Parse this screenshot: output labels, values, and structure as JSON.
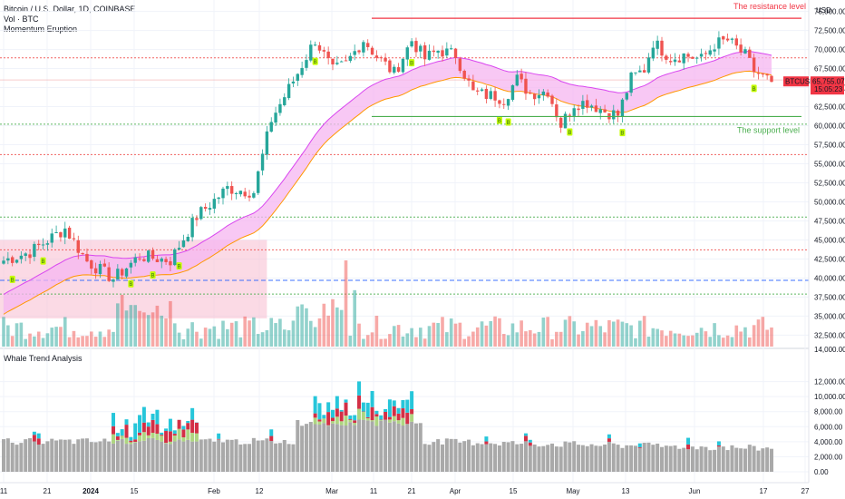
{
  "header": {
    "title": "Bitcoin / U.S. Dollar, 1D, COINBASE",
    "indicator_1": "Vol · BTC",
    "indicator_2": "Momentum Eruption",
    "pane2_title": "Whale Trend Analysis",
    "currency": "USD"
  },
  "price_tag": {
    "symbol": "BTCUSD",
    "price": "65,755.07",
    "countdown": "15:05:23",
    "color": "#f23645"
  },
  "annotations": {
    "resistance": {
      "label": "The resistance level",
      "value": 74100,
      "color": "#f23645"
    },
    "support": {
      "label": "The support level",
      "value": 61200,
      "color": "#4caf50"
    }
  },
  "colors": {
    "up": "#26a69a",
    "down": "#ef5350",
    "band_fill": "#f5b5f0",
    "band_line": "#d946ef",
    "band_lower": "#ff9800",
    "whale_gray": "#a9a9a9",
    "whale_green": "#aed581",
    "whale_red": "#d32f45",
    "whale_cyan": "#26c6da",
    "signal_label": "#c6ff00"
  },
  "chart_data": {
    "type": "candlestick",
    "ylim": [
      31000,
      76500
    ],
    "y_ticks": [
      "75,000.00",
      "72,500.00",
      "70,000.00",
      "67,500.00",
      "65,000.00",
      "62,500.00",
      "60,000.00",
      "57,500.00",
      "55,000.00",
      "52,500.00",
      "50,000.00",
      "47,500.00",
      "45,000.00",
      "42,500.00",
      "40,000.00",
      "37,500.00",
      "35,000.00",
      "32,500.00"
    ],
    "volume_axis_label": "14,000.00",
    "x_ticks": [
      "11",
      "21",
      "2024",
      "15",
      "Feb",
      "12",
      "Mar",
      "11",
      "21",
      "Apr",
      "15",
      "May",
      "13",
      "Jun",
      "17",
      "27"
    ],
    "x_tick_bold": [
      "2024"
    ],
    "close_anchors": [
      [
        0,
        42300
      ],
      [
        6,
        43400
      ],
      [
        14,
        46500
      ],
      [
        19,
        42200
      ],
      [
        25,
        39900
      ],
      [
        31,
        42900
      ],
      [
        38,
        42300
      ],
      [
        44,
        48100
      ],
      [
        51,
        51800
      ],
      [
        57,
        51300
      ],
      [
        61,
        60800
      ],
      [
        67,
        66900
      ],
      [
        71,
        71300
      ],
      [
        75,
        67200
      ],
      [
        78,
        68100
      ],
      [
        82,
        71300
      ],
      [
        85,
        69100
      ],
      [
        89,
        66900
      ],
      [
        93,
        71200
      ],
      [
        96,
        68800
      ],
      [
        99,
        69900
      ],
      [
        103,
        69300
      ],
      [
        107,
        64300
      ],
      [
        110,
        64000
      ],
      [
        112,
        63900
      ],
      [
        114,
        63500
      ],
      [
        117,
        66100
      ],
      [
        120,
        64200
      ],
      [
        124,
        64600
      ],
      [
        127,
        60100
      ],
      [
        130,
        62900
      ],
      [
        133,
        63100
      ],
      [
        137,
        61900
      ],
      [
        140,
        61400
      ],
      [
        143,
        66200
      ],
      [
        146,
        67400
      ],
      [
        148,
        71000
      ],
      [
        152,
        68900
      ],
      [
        155,
        69300
      ],
      [
        159,
        68700
      ],
      [
        162,
        70700
      ],
      [
        165,
        71200
      ],
      [
        169,
        69200
      ],
      [
        171,
        67200
      ],
      [
        173,
        66400
      ],
      [
        175,
        65755
      ]
    ],
    "reference_lines": [
      {
        "value": 68900,
        "color": "#ef5350",
        "style": "dotted"
      },
      {
        "value": 66000,
        "color": "#ef9a9a",
        "style": "solid"
      },
      {
        "value": 60200,
        "color": "#4caf50",
        "style": "dotted"
      },
      {
        "value": 56200,
        "color": "#ef5350",
        "style": "dotted"
      },
      {
        "value": 48000,
        "color": "#4caf50",
        "style": "dotted"
      },
      {
        "value": 43700,
        "color": "#ef5350",
        "style": "dotted"
      },
      {
        "value": 39700,
        "color": "#2962ff",
        "style": "dashed"
      },
      {
        "value": 37900,
        "color": "#4caf50",
        "style": "dotted"
      }
    ],
    "zone": {
      "from_bar": 0,
      "to_bar": 60,
      "low": 34700,
      "high": 45000,
      "color": "#f8bbd0"
    },
    "buy_signals": [
      2,
      9,
      29,
      34,
      40,
      71,
      93,
      113,
      115,
      129,
      141,
      171
    ],
    "whale_ylim": [
      0,
      14000
    ],
    "whale_ticks": [
      "12,000.00",
      "10,000.00",
      "8,000.00",
      "6,000.00",
      "4,000.00",
      "2,000.00",
      "0.00"
    ]
  }
}
